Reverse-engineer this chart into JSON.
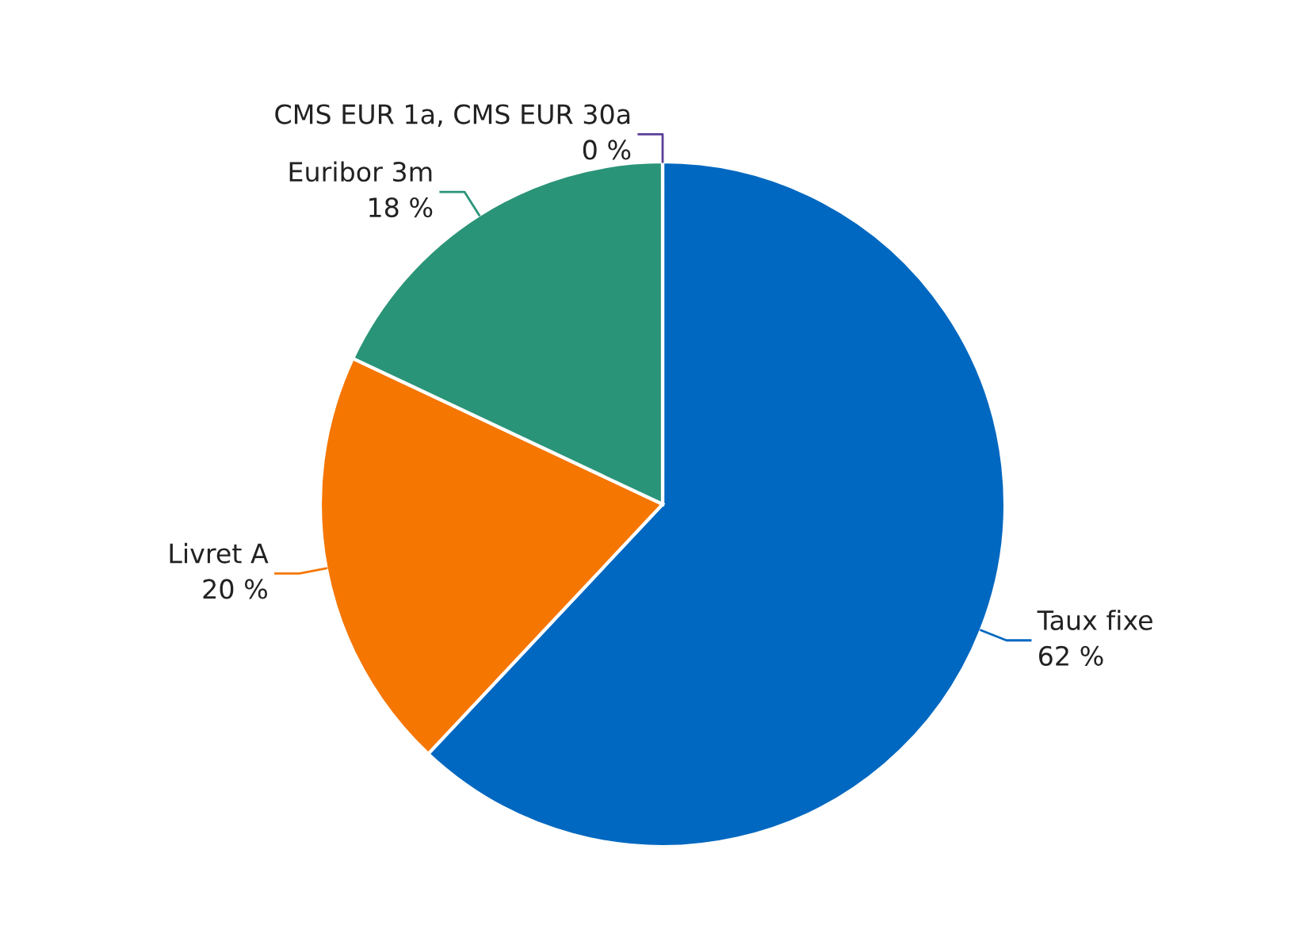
{
  "chart_data": {
    "type": "pie",
    "categories": [
      "Taux fixe",
      "Livret A",
      "Euribor 3m",
      "CMS EUR 1a, CMS EUR 30a"
    ],
    "values": [
      62,
      20,
      18,
      0
    ],
    "value_labels": [
      "62 %",
      "20 %",
      "18 %",
      "0 %"
    ],
    "colors": [
      "#0068c0",
      "#f57600",
      "#2a9478",
      "#5b3f99"
    ],
    "legend": false
  }
}
